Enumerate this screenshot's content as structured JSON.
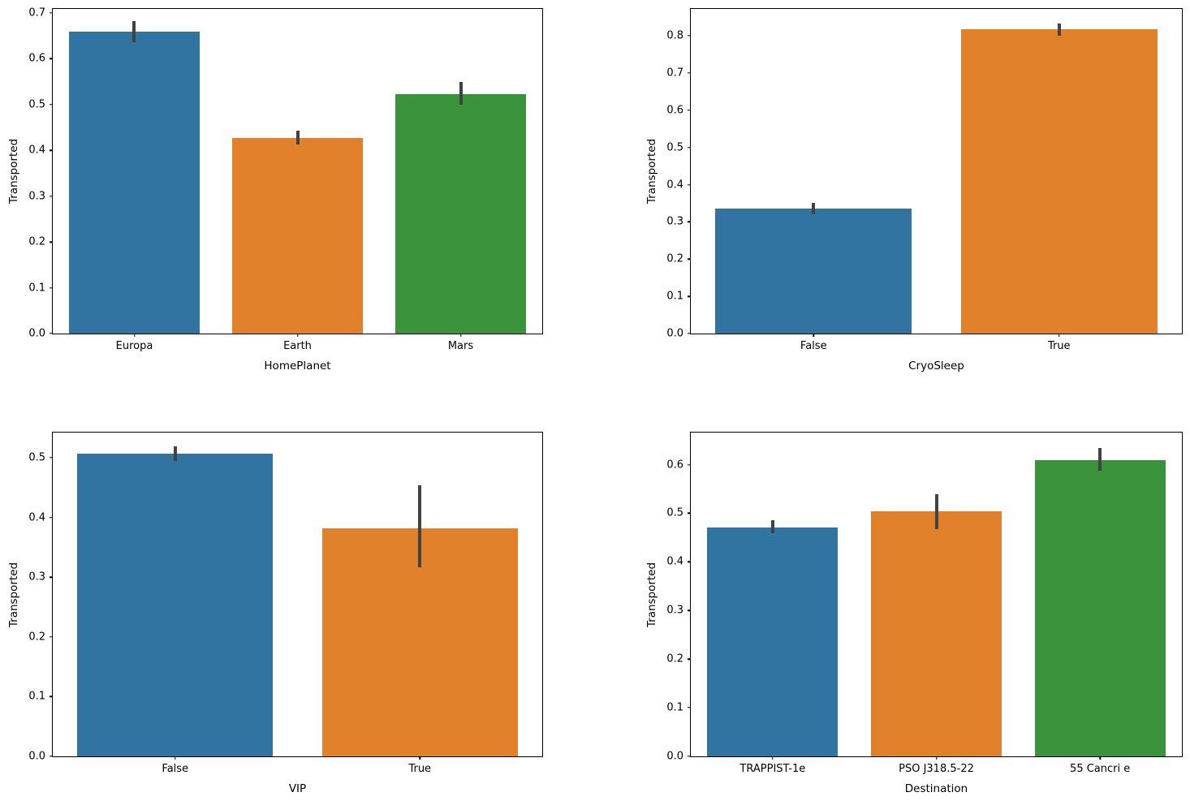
{
  "figure": {
    "background": "#ffffff",
    "palette": {
      "blue": "#3274a1",
      "orange": "#e1812c",
      "green": "#3a923a"
    },
    "error_bar_color": "#424242",
    "spine_color": "#000000"
  },
  "chart_data": [
    {
      "id": "transported-by-homeplanet",
      "type": "bar",
      "title": "",
      "xlabel": "HomePlanet",
      "ylabel": "Transported",
      "categories": [
        "Europa",
        "Earth",
        "Mars"
      ],
      "values": [
        0.659,
        0.428,
        0.523
      ],
      "errors_low": [
        0.637,
        0.413,
        0.499
      ],
      "errors_high": [
        0.682,
        0.444,
        0.549
      ],
      "bar_colors": [
        "#3274a1",
        "#e1812c",
        "#3a923a"
      ],
      "ylim": [
        0,
        0.709
      ],
      "yticks": [
        0.0,
        0.1,
        0.2,
        0.3,
        0.4,
        0.5,
        0.6,
        0.7
      ],
      "grid": false,
      "legend": "none"
    },
    {
      "id": "transported-by-cryosleep",
      "type": "bar",
      "title": "",
      "xlabel": "CryoSleep",
      "ylabel": "Transported",
      "categories": [
        "False",
        "True"
      ],
      "values": [
        0.335,
        0.817
      ],
      "errors_low": [
        0.32,
        0.801
      ],
      "errors_high": [
        0.35,
        0.833
      ],
      "bar_colors": [
        "#3274a1",
        "#e1812c"
      ],
      "ylim": [
        0,
        0.872
      ],
      "yticks": [
        0.0,
        0.1,
        0.2,
        0.3,
        0.4,
        0.5,
        0.6,
        0.7,
        0.8
      ],
      "grid": false,
      "legend": "none"
    },
    {
      "id": "transported-by-vip",
      "type": "bar",
      "title": "",
      "xlabel": "VIP",
      "ylabel": "Transported",
      "categories": [
        "False",
        "True"
      ],
      "values": [
        0.507,
        0.382
      ],
      "errors_low": [
        0.495,
        0.316
      ],
      "errors_high": [
        0.519,
        0.454
      ],
      "bar_colors": [
        "#3274a1",
        "#e1812c"
      ],
      "ylim": [
        0,
        0.542
      ],
      "yticks": [
        0.0,
        0.1,
        0.2,
        0.3,
        0.4,
        0.5
      ],
      "grid": false,
      "legend": "none"
    },
    {
      "id": "transported-by-destination",
      "type": "bar",
      "title": "",
      "xlabel": "Destination",
      "ylabel": "Transported",
      "categories": [
        "TRAPPIST-1e",
        "PSO J318.5-22",
        "55 Cancri e"
      ],
      "values": [
        0.471,
        0.504,
        0.61
      ],
      "errors_low": [
        0.459,
        0.468,
        0.587
      ],
      "errors_high": [
        0.486,
        0.54,
        0.634
      ],
      "bar_colors": [
        "#3274a1",
        "#e1812c",
        "#3a923a"
      ],
      "ylim": [
        0,
        0.666
      ],
      "yticks": [
        0.0,
        0.1,
        0.2,
        0.3,
        0.4,
        0.5,
        0.6
      ],
      "grid": false,
      "legend": "none"
    }
  ]
}
